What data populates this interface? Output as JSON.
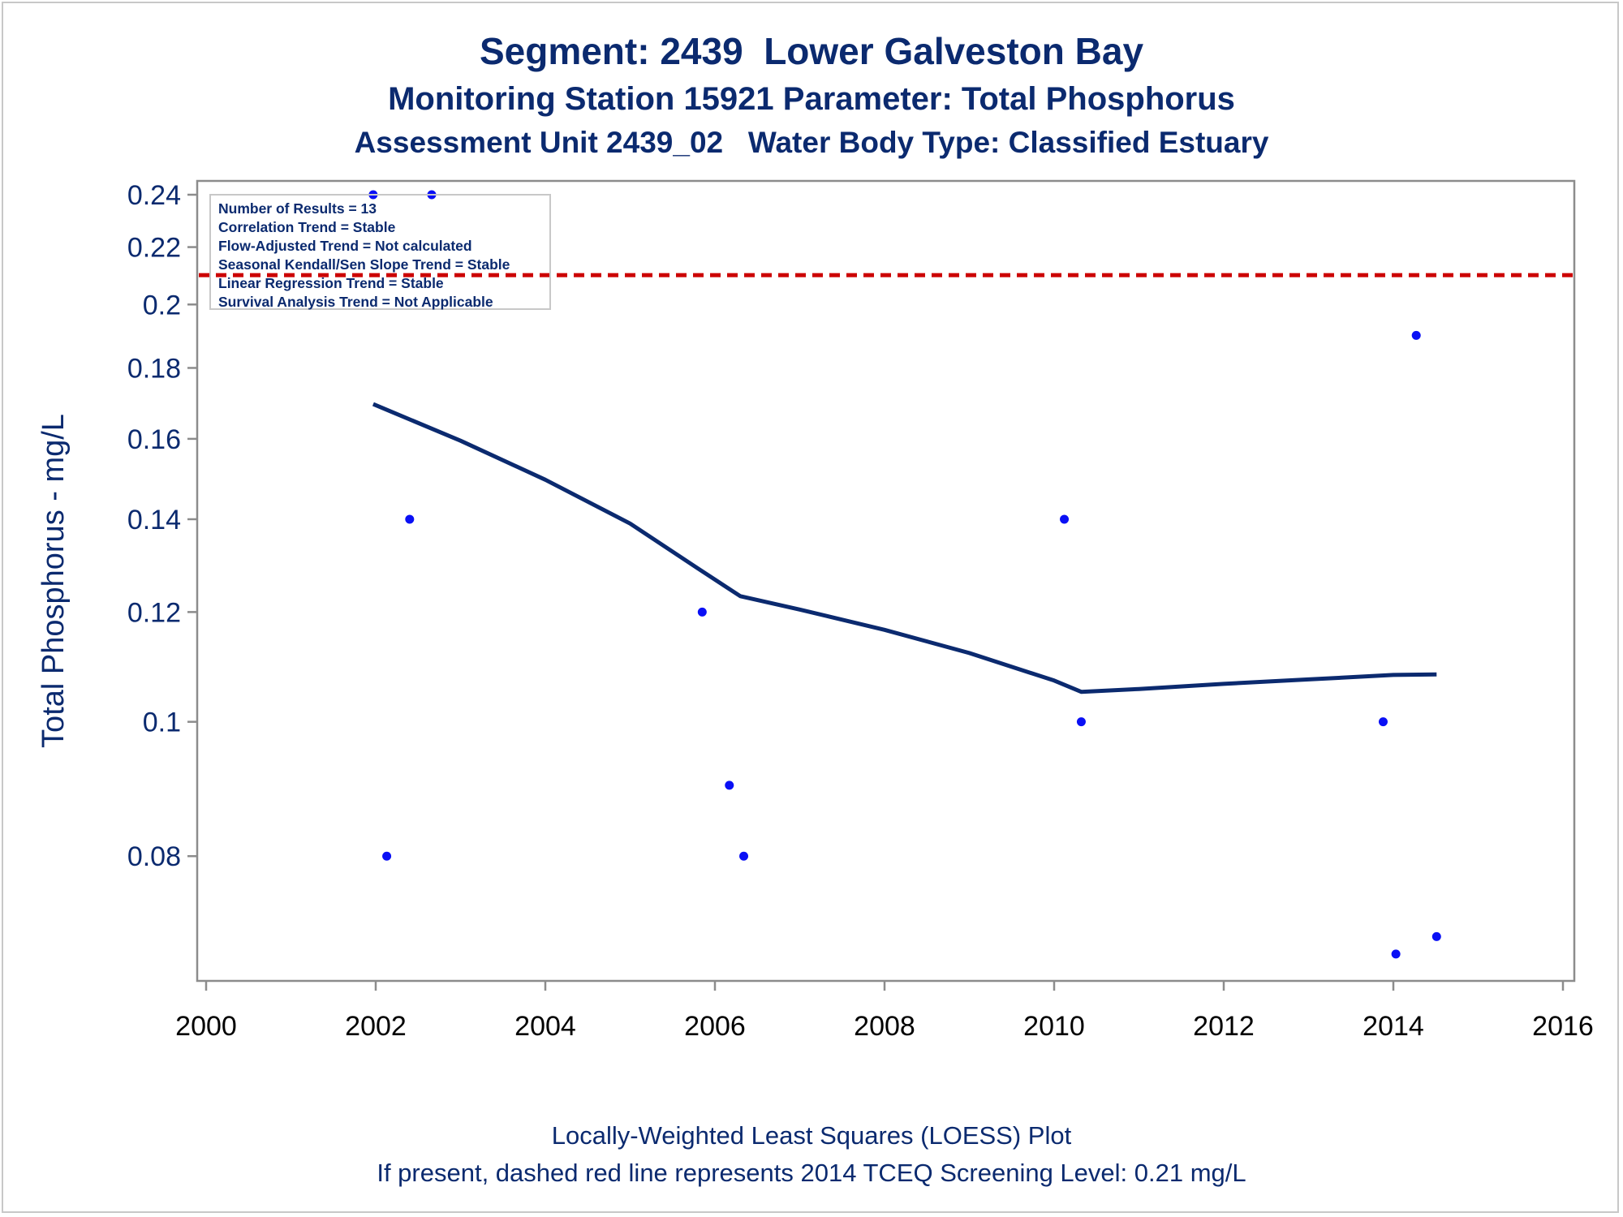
{
  "chart_data": {
    "type": "scatter",
    "title": "Segment: 2439  Lower Galveston Bay",
    "subtitle": [
      "Monitoring Station 15921 Parameter: Total Phosphorus",
      "Assessment Unit 2439_02   Water Body Type: Classified Estuary"
    ],
    "xlabel": "",
    "ylabel": "Total Phosphorus - mg/L",
    "xlim": [
      2000,
      2016
    ],
    "ylim": [
      0.066,
      0.24
    ],
    "y_scale": "log",
    "x_ticks": [
      "2000",
      "2002",
      "2004",
      "2006",
      "2008",
      "2010",
      "2012",
      "2014",
      "2016"
    ],
    "y_ticks": [
      {
        "value": 0.24,
        "label": "0.24"
      },
      {
        "value": 0.22,
        "label": "0.22"
      },
      {
        "value": 0.2,
        "label": "0.2"
      },
      {
        "value": 0.18,
        "label": "0.18"
      },
      {
        "value": 0.16,
        "label": "0.16"
      },
      {
        "value": 0.14,
        "label": "0.14"
      },
      {
        "value": 0.12,
        "label": "0.12"
      },
      {
        "value": 0.1,
        "label": "0.1"
      },
      {
        "value": 0.08,
        "label": "0.08"
      }
    ],
    "points": [
      {
        "x": 2001.97,
        "y": 0.24
      },
      {
        "x": 2002.13,
        "y": 0.08
      },
      {
        "x": 2002.4,
        "y": 0.14
      },
      {
        "x": 2002.66,
        "y": 0.24
      },
      {
        "x": 2005.85,
        "y": 0.12
      },
      {
        "x": 2006.17,
        "y": 0.09
      },
      {
        "x": 2006.34,
        "y": 0.08
      },
      {
        "x": 2010.12,
        "y": 0.14
      },
      {
        "x": 2010.32,
        "y": 0.1
      },
      {
        "x": 2013.88,
        "y": 0.1
      },
      {
        "x": 2014.03,
        "y": 0.068
      },
      {
        "x": 2014.27,
        "y": 0.19
      },
      {
        "x": 2014.51,
        "y": 0.07
      }
    ],
    "loess": [
      {
        "x": 2001.97,
        "y": 0.1695
      },
      {
        "x": 2003.0,
        "y": 0.1595
      },
      {
        "x": 2004.0,
        "y": 0.1495
      },
      {
        "x": 2005.0,
        "y": 0.139
      },
      {
        "x": 2005.8,
        "y": 0.129
      },
      {
        "x": 2006.3,
        "y": 0.1232
      },
      {
        "x": 2007.0,
        "y": 0.1205
      },
      {
        "x": 2008.0,
        "y": 0.1165
      },
      {
        "x": 2009.0,
        "y": 0.1121
      },
      {
        "x": 2010.0,
        "y": 0.1071
      },
      {
        "x": 2010.32,
        "y": 0.1051
      },
      {
        "x": 2011.0,
        "y": 0.1056
      },
      {
        "x": 2012.0,
        "y": 0.1065
      },
      {
        "x": 2013.0,
        "y": 0.1073
      },
      {
        "x": 2014.0,
        "y": 0.1081
      },
      {
        "x": 2014.51,
        "y": 0.1082
      }
    ],
    "screening_level": 0.21,
    "colors": {
      "points": "#0a10f5",
      "loess": "#0b2a6f",
      "screening_line": "#cc0000",
      "axis": "#8c8c8c",
      "text": "#0b2a6f"
    },
    "stats_box": {
      "placement": "top-left",
      "lines": [
        "Number of Results = 13",
        "Correlation Trend = Stable",
        "Flow-Adjusted Trend = Not calculated",
        "Seasonal Kendall/Sen Slope Trend = Stable",
        "Linear Regression Trend = Stable",
        "Survival Analysis Trend = Not Applicable"
      ]
    },
    "footnotes": [
      "Locally-Weighted Least Squares (LOESS) Plot",
      "If present, dashed red line represents 2014 TCEQ Screening Level: 0.21 mg/L"
    ]
  }
}
